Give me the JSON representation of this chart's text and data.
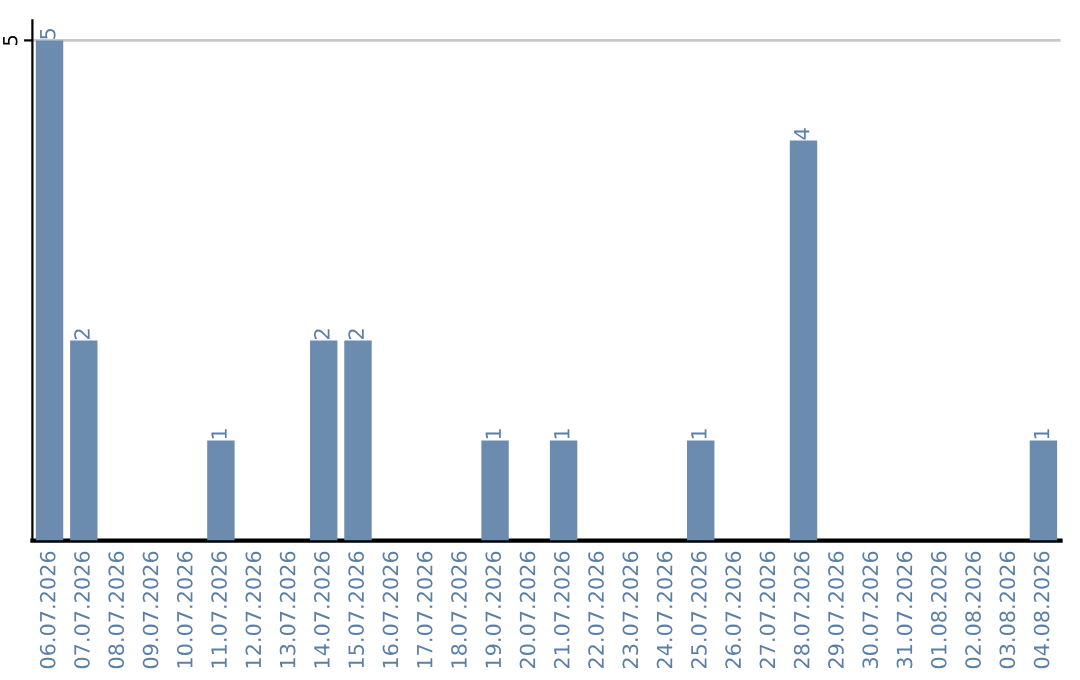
{
  "chart_data": {
    "type": "bar",
    "categories": [
      "06.07.2026",
      "07.07.2026",
      "08.07.2026",
      "09.07.2026",
      "10.07.2026",
      "11.07.2026",
      "12.07.2026",
      "13.07.2026",
      "14.07.2026",
      "15.07.2026",
      "16.07.2026",
      "17.07.2026",
      "18.07.2026",
      "19.07.2026",
      "20.07.2026",
      "21.07.2026",
      "22.07.2026",
      "23.07.2026",
      "24.07.2026",
      "25.07.2026",
      "26.07.2026",
      "27.07.2026",
      "28.07.2026",
      "29.07.2026",
      "30.07.2026",
      "31.07.2026",
      "01.08.2026",
      "02.08.2026",
      "03.08.2026",
      "04.08.2026"
    ],
    "values": [
      5,
      2,
      0,
      0,
      0,
      1,
      0,
      0,
      2,
      2,
      0,
      0,
      0,
      1,
      0,
      1,
      0,
      0,
      0,
      1,
      0,
      0,
      4,
      0,
      0,
      0,
      0,
      0,
      0,
      1
    ],
    "value_labels": [
      "5",
      "2",
      null,
      null,
      null,
      "1",
      null,
      null,
      "2",
      "2",
      null,
      null,
      null,
      "1",
      null,
      "1",
      null,
      null,
      null,
      "1",
      null,
      null,
      "4",
      null,
      null,
      null,
      null,
      null,
      null,
      "1"
    ],
    "color": "#6b8caf",
    "ylim": [
      0,
      5.2
    ],
    "yticks": [
      5
    ],
    "grid": "y",
    "legend": false
  }
}
